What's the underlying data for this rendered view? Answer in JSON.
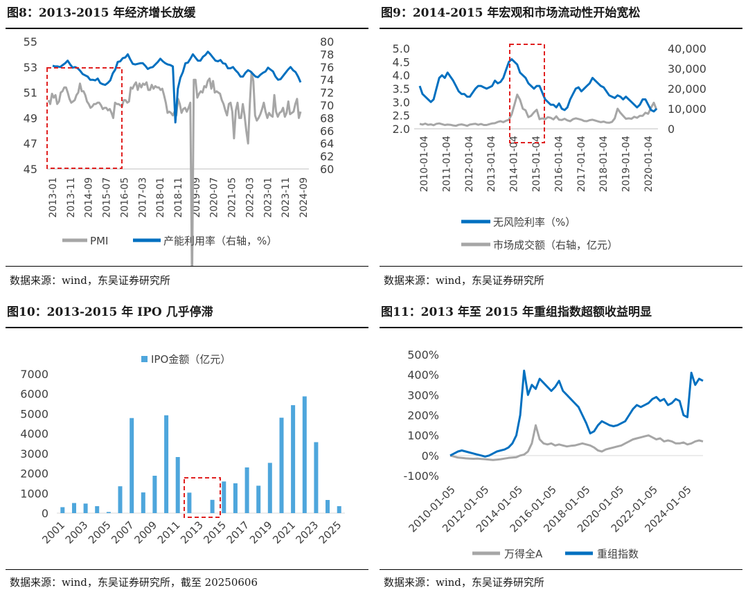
{
  "panels": [
    {
      "title": "图8：2013-2015 年经济增长放缓",
      "source": "数据来源：wind，东吴证券研究所"
    },
    {
      "title": "图9：2014-2015 年宏观和市场流动性开始宽松",
      "source": "数据来源：wind，东吴证券研究所"
    },
    {
      "title": "图10：2013-2015 年 IPO 几乎停滞",
      "source": "数据来源：wind，东吴证券研究所，截至 20250606"
    },
    {
      "title": "图11：2013 年至 2015 年重组指数超额收益明显",
      "source": "数据来源：wind，东吴证券研究所"
    }
  ],
  "chart_data": [
    {
      "type": "line",
      "x_ticks": [
        "2013-01",
        "2013-11",
        "2014-09",
        "2015-07",
        "2016-05",
        "2017-03",
        "2018-01",
        "2018-11",
        "2019-09",
        "2020-07",
        "2021-05",
        "2022-03",
        "2023-01",
        "2023-11",
        "2024-09"
      ],
      "y_left": {
        "ticks": [
          45,
          47,
          49,
          51,
          53,
          55
        ],
        "range": [
          45,
          55
        ]
      },
      "y_right": {
        "ticks": [
          60,
          62,
          64,
          66,
          68,
          70,
          72,
          74,
          76,
          78,
          80
        ],
        "range": [
          60,
          80
        ]
      },
      "legend_position": "bottom",
      "series": [
        {
          "name": "PMI",
          "axis": "left",
          "color": "#a6a6a6",
          "values": [
            50.4,
            50.1,
            50.9,
            50.6,
            50.8,
            50.1,
            50.3,
            51.0,
            51.1,
            51.4,
            51.4,
            51.0,
            50.5,
            50.2,
            50.3,
            50.4,
            50.8,
            51.0,
            51.7,
            51.1,
            51.1,
            50.8,
            50.3,
            50.1,
            49.8,
            49.9,
            50.1,
            50.1,
            50.2,
            50.2,
            50.0,
            49.7,
            49.8,
            49.8,
            49.6,
            49.7,
            49.4,
            49.0,
            50.2,
            50.1,
            50.1,
            50.0,
            49.9,
            50.4,
            50.4,
            50.2,
            50.3,
            51.4,
            51.3,
            51.6,
            51.8,
            51.2,
            51.7,
            51.4,
            51.7,
            51.6,
            51.8,
            51.2,
            51.2,
            51.6,
            51.3,
            51.5,
            51.4,
            51.4,
            51.2,
            51.3,
            50.8,
            50.2,
            49.4,
            49.5,
            49.4,
            49.2,
            49.5,
            49.2,
            50.5,
            50.1,
            49.4,
            49.7,
            49.8,
            49.5,
            49.8,
            50.2,
            35.7,
            52.0,
            52.0,
            50.6,
            50.9,
            51.1,
            51.0,
            51.5,
            51.4,
            51.9,
            52.1,
            51.3,
            51.9,
            51.0,
            51.1,
            51.0,
            50.9,
            50.4,
            50.1,
            49.6,
            49.2,
            50.1,
            50.2,
            49.5,
            47.4,
            49.6,
            50.2,
            49.0,
            49.0,
            50.1,
            49.2,
            48.0,
            47.0,
            50.1,
            52.6,
            51.9,
            49.2,
            48.8,
            49.0,
            49.3,
            49.7,
            50.2,
            49.5,
            49.0,
            49.4,
            49.2,
            49.1,
            50.8,
            49.5,
            49.1,
            49.4,
            49.5,
            49.8,
            49.1,
            49.4,
            50.3,
            49.3,
            49.4,
            49.5,
            50.1,
            50.5,
            49.0,
            49.5
          ]
        },
        {
          "name": "产能利用率（右轴，%）",
          "axis": "right",
          "color": "#0070c0",
          "values": [
            76.2,
            76.1,
            76.1,
            76.0,
            76.3,
            76.6,
            77.0,
            76.4,
            75.9,
            76.0,
            75.8,
            75.4,
            74.9,
            74.7,
            74.5,
            74.0,
            74.0,
            73.9,
            74.2,
            73.5,
            73.3,
            73.2,
            73.5,
            73.9,
            75.0,
            75.6,
            76.8,
            76.9,
            77.4,
            77.5,
            78.0,
            77.2,
            76.5,
            76.4,
            76.5,
            76.6,
            76.6,
            76.2,
            75.7,
            75.9,
            76.0,
            76.4,
            76.8,
            77.3,
            76.9,
            76.6,
            76.4,
            76.3,
            76.1,
            67.3,
            72.6,
            74.3,
            75.2,
            76.6,
            76.7,
            77.3,
            78.0,
            77.5,
            77.0,
            77.0,
            77.6,
            77.9,
            78.4,
            78.0,
            77.5,
            77.0,
            76.9,
            77.1,
            76.6,
            76.5,
            75.8,
            75.8,
            76.0,
            75.5,
            75.1,
            74.5,
            74.5,
            75.1,
            75.5,
            75.3,
            74.9,
            74.5,
            74.4,
            74.8,
            75.1,
            75.3,
            75.9,
            75.6,
            75.3,
            74.5,
            74.0,
            74.1,
            74.6,
            75.1,
            75.6,
            76.0,
            75.5,
            75.2,
            74.5,
            73.6
          ]
        }
      ]
    },
    {
      "type": "line",
      "x_ticks": [
        "2010-01-04",
        "2011-01-04",
        "2012-01-04",
        "2013-01-04",
        "2014-01-04",
        "2015-01-04",
        "2016-01-04",
        "2017-01-04",
        "2018-01-04",
        "2019-01-04",
        "2020-01-04"
      ],
      "y_left": {
        "ticks": [
          "2.0",
          "2.5",
          "3.0",
          "3.5",
          "4.0",
          "4.5",
          "5.0"
        ],
        "range": [
          2.0,
          5.0
        ]
      },
      "y_right": {
        "ticks": [
          "0",
          "10,000",
          "20,000",
          "30,000",
          "40,000"
        ],
        "range": [
          0,
          40000
        ]
      },
      "legend_position": "bottom",
      "series": [
        {
          "name": "无风险利率（%）",
          "axis": "left",
          "color": "#0070c0",
          "values": [
            3.6,
            3.3,
            3.2,
            3.1,
            3.0,
            3.1,
            3.5,
            3.9,
            4.0,
            3.9,
            4.1,
            3.95,
            3.8,
            3.6,
            3.4,
            3.3,
            3.3,
            3.2,
            3.2,
            3.35,
            3.5,
            3.6,
            3.6,
            3.55,
            3.5,
            3.55,
            3.6,
            3.8,
            3.7,
            3.75,
            3.9,
            4.2,
            4.5,
            4.6,
            4.5,
            4.4,
            4.1,
            4.0,
            3.9,
            3.7,
            3.6,
            3.5,
            3.6,
            3.6,
            3.35,
            3.1,
            3.0,
            2.9,
            2.9,
            2.8,
            2.95,
            2.75,
            2.7,
            2.8,
            3.1,
            3.3,
            3.5,
            3.55,
            3.4,
            3.5,
            3.6,
            3.7,
            3.9,
            3.8,
            3.7,
            3.6,
            3.55,
            3.4,
            3.25,
            3.2,
            3.15,
            3.25,
            3.2,
            3.1,
            3.2,
            3.1,
            3.0,
            2.9,
            2.8,
            2.9,
            3.1,
            3.1,
            2.9,
            2.7,
            2.65,
            2.75
          ]
        },
        {
          "name": "市场成交额（右轴，亿元）",
          "axis": "right",
          "color": "#a6a6a6",
          "values": [
            2500,
            2100,
            2600,
            2000,
            2200,
            1800,
            2500,
            2700,
            2300,
            1900,
            2100,
            2000,
            1700,
            1500,
            2000,
            2200,
            1900,
            1500,
            2100,
            2300,
            2500,
            2000,
            2400,
            1900,
            1900,
            2300,
            2700,
            2800,
            3400,
            3800,
            3300,
            4000,
            4500,
            7200,
            12000,
            17000,
            14500,
            10000,
            9200,
            5800,
            6500,
            8200,
            9500,
            4800,
            5200,
            4800,
            5800,
            5500,
            4700,
            6200,
            4500,
            4400,
            5000,
            4200,
            3800,
            4800,
            5200,
            4900,
            4500,
            3900,
            3800,
            4300,
            4500,
            4100,
            3700,
            3300,
            3600,
            3100,
            3000,
            3400,
            5200,
            10000,
            8000,
            6500,
            5000,
            5200,
            5000,
            6000,
            5500,
            6500,
            6500,
            8000,
            7500,
            10500,
            13000,
            9500
          ]
        }
      ]
    },
    {
      "type": "bar",
      "categories": [
        "2001",
        "2002",
        "2003",
        "2004",
        "2005",
        "2006",
        "2007",
        "2008",
        "2009",
        "2010",
        "2011",
        "2012",
        "2013",
        "2014",
        "2015",
        "2016",
        "2017",
        "2018",
        "2019",
        "2020",
        "2021",
        "2022",
        "2023",
        "2024",
        "2025"
      ],
      "x_ticks": [
        "2001",
        "2003",
        "2005",
        "2007",
        "2009",
        "2011",
        "2013",
        "2015",
        "2017",
        "2019",
        "2021",
        "2023",
        "2025"
      ],
      "values": [
        300,
        510,
        480,
        350,
        60,
        1350,
        4780,
        1040,
        1880,
        4920,
        2820,
        1030,
        0,
        670,
        1590,
        1500,
        2300,
        1380,
        2530,
        4800,
        5430,
        5870,
        3570,
        660,
        350
      ],
      "y_ticks": [
        0,
        1000,
        2000,
        3000,
        4000,
        5000,
        6000,
        7000
      ],
      "ylim": [
        0,
        7000
      ],
      "legend_position": "top",
      "series": [
        {
          "name": "IPO金额（亿元）",
          "color": "#4ea6dc"
        }
      ]
    },
    {
      "type": "line",
      "x_ticks": [
        "2010-01-05",
        "2012-01-05",
        "2014-01-05",
        "2016-01-05",
        "2018-01-05",
        "2020-01-05",
        "2022-01-05",
        "2024-01-05"
      ],
      "y_ticks": [
        "-100%",
        "0%",
        "100%",
        "200%",
        "300%",
        "400%",
        "500%"
      ],
      "ylim": [
        -100,
        500
      ],
      "legend_position": "bottom",
      "series": [
        {
          "name": "万得全A",
          "color": "#a6a6a6",
          "values": [
            0,
            -5,
            -10,
            -12,
            -14,
            -15,
            -16,
            -15,
            -17,
            -18,
            -20,
            -22,
            -20,
            -18,
            -15,
            -12,
            -10,
            -8,
            0,
            5,
            20,
            60,
            150,
            80,
            60,
            55,
            60,
            50,
            55,
            50,
            45,
            48,
            50,
            55,
            60,
            55,
            50,
            40,
            25,
            20,
            30,
            35,
            40,
            45,
            50,
            60,
            70,
            80,
            85,
            90,
            95,
            100,
            90,
            80,
            85,
            70,
            75,
            70,
            60,
            60,
            65,
            55,
            60,
            70,
            75,
            70
          ]
        },
        {
          "name": "重组指数",
          "color": "#0070c0",
          "values": [
            0,
            10,
            20,
            25,
            20,
            15,
            10,
            5,
            0,
            -5,
            0,
            10,
            20,
            25,
            30,
            40,
            60,
            100,
            200,
            420,
            300,
            350,
            330,
            380,
            360,
            340,
            320,
            340,
            370,
            320,
            300,
            280,
            260,
            240,
            200,
            160,
            110,
            120,
            150,
            170,
            160,
            150,
            145,
            150,
            160,
            170,
            200,
            230,
            250,
            240,
            250,
            260,
            280,
            290,
            270,
            280,
            250,
            260,
            280,
            270,
            200,
            190,
            410,
            350,
            380,
            370
          ]
        }
      ]
    }
  ]
}
